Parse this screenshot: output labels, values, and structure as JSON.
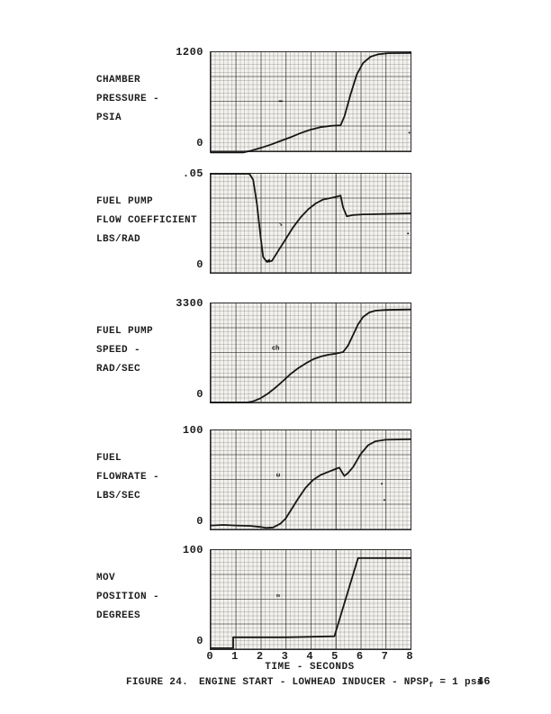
{
  "page": {
    "background": "#ffffff",
    "ink_color": "#1d1d1d",
    "paper_tint": "#f3f2ee"
  },
  "x_axis": {
    "label": "TIME - SECONDS",
    "ticks": [
      "0",
      "1",
      "2",
      "3",
      "4",
      "5",
      "6",
      "7",
      "8"
    ],
    "min": 0,
    "max": 8
  },
  "caption": {
    "figure_label": "FIGURE 24.",
    "title": "ENGINE START - LOWHEAD INDUCER - NPSP",
    "subscript": "f",
    "suffix": " = 1 psi",
    "page_number": "46"
  },
  "chart_data": [
    {
      "type": "line",
      "title": "Chamber Pressure",
      "label_lines": [
        "CHAMBER",
        "PRESSURE -",
        "PSIA"
      ],
      "ylabel": "CHAMBER PRESSURE - PSIA",
      "y_top_label": "1200",
      "y_bottom_label": "0",
      "ymax": 1200,
      "ylim": [
        0,
        1200
      ],
      "xlim": [
        0,
        8
      ],
      "points": [
        [
          0,
          -15
        ],
        [
          1.3,
          -15
        ],
        [
          1.6,
          5
        ],
        [
          2.0,
          40
        ],
        [
          2.4,
          80
        ],
        [
          2.8,
          125
        ],
        [
          3.2,
          170
        ],
        [
          3.6,
          220
        ],
        [
          4.0,
          262
        ],
        [
          4.4,
          292
        ],
        [
          4.8,
          308
        ],
        [
          5.2,
          315
        ],
        [
          5.35,
          420
        ],
        [
          5.6,
          690
        ],
        [
          5.85,
          930
        ],
        [
          6.1,
          1070
        ],
        [
          6.4,
          1145
        ],
        [
          6.7,
          1175
        ],
        [
          7.1,
          1188
        ],
        [
          8,
          1190
        ]
      ],
      "marks": [
        {
          "t": 2.8,
          "v": 600,
          "text": "▬"
        },
        {
          "t": 7.95,
          "v": 210,
          "text": "▪"
        }
      ]
    },
    {
      "type": "line",
      "title": "Fuel Pump Flow Coefficient",
      "label_lines": [
        "FUEL PUMP",
        "FLOW COEFFICIENT",
        "LBS/RAD"
      ],
      "ylabel": "FUEL PUMP FLOW COEFFICIENT LBS/RAD",
      "y_top_label": ".05",
      "y_bottom_label": "0",
      "ymax": 0.05,
      "ylim": [
        0,
        0.05
      ],
      "xlim": [
        0,
        8
      ],
      "points": [
        [
          0,
          0.05
        ],
        [
          1.55,
          0.05
        ],
        [
          1.7,
          0.047
        ],
        [
          1.85,
          0.035
        ],
        [
          2.0,
          0.018
        ],
        [
          2.1,
          0.008
        ],
        [
          2.25,
          0.0055
        ],
        [
          2.45,
          0.006
        ],
        [
          2.7,
          0.011
        ],
        [
          3.0,
          0.017
        ],
        [
          3.3,
          0.023
        ],
        [
          3.6,
          0.028
        ],
        [
          3.9,
          0.032
        ],
        [
          4.2,
          0.035
        ],
        [
          4.5,
          0.037
        ],
        [
          4.9,
          0.038
        ],
        [
          5.2,
          0.039
        ],
        [
          5.3,
          0.033
        ],
        [
          5.45,
          0.0285
        ],
        [
          5.7,
          0.0292
        ],
        [
          6.1,
          0.0295
        ],
        [
          8,
          0.03
        ]
      ],
      "marks": [
        {
          "t": 2.8,
          "v": 0.024,
          "text": "↘"
        },
        {
          "t": 2.3,
          "v": 0.0055,
          "text": "◄"
        },
        {
          "t": 7.9,
          "v": 0.019,
          "text": "▪"
        }
      ]
    },
    {
      "type": "line",
      "title": "Fuel Pump Speed",
      "label_lines": [
        "FUEL PUMP",
        "SPEED -",
        "RAD/SEC"
      ],
      "ylabel": "FUEL PUMP SPEED - RAD/SEC",
      "y_top_label": "3300",
      "y_bottom_label": "0",
      "ymax": 3300,
      "ylim": [
        0,
        3300
      ],
      "xlim": [
        0,
        8
      ],
      "points": [
        [
          0,
          0
        ],
        [
          1.45,
          0
        ],
        [
          1.7,
          40
        ],
        [
          2.0,
          140
        ],
        [
          2.3,
          300
        ],
        [
          2.6,
          500
        ],
        [
          2.9,
          720
        ],
        [
          3.2,
          950
        ],
        [
          3.5,
          1140
        ],
        [
          3.8,
          1300
        ],
        [
          4.1,
          1440
        ],
        [
          4.4,
          1530
        ],
        [
          4.7,
          1590
        ],
        [
          5.0,
          1625
        ],
        [
          5.3,
          1680
        ],
        [
          5.5,
          1900
        ],
        [
          5.7,
          2250
        ],
        [
          5.9,
          2600
        ],
        [
          6.1,
          2850
        ],
        [
          6.35,
          3000
        ],
        [
          6.6,
          3060
        ],
        [
          7.0,
          3085
        ],
        [
          8,
          3100
        ]
      ],
      "marks": [
        {
          "t": 2.6,
          "v": 1760,
          "text": "ch"
        }
      ]
    },
    {
      "type": "line",
      "title": "Fuel Flowrate",
      "label_lines": [
        "FUEL",
        "FLOWRATE -",
        "LBS/SEC"
      ],
      "ylabel": "FUEL FLOWRATE - LBS/SEC",
      "y_top_label": "100",
      "y_bottom_label": "0",
      "ymax": 100,
      "ylim": [
        0,
        100
      ],
      "xlim": [
        0,
        8
      ],
      "points": [
        [
          0,
          4
        ],
        [
          0.5,
          4.5
        ],
        [
          1.0,
          4
        ],
        [
          1.6,
          3.5
        ],
        [
          2.0,
          2.5
        ],
        [
          2.2,
          1.5
        ],
        [
          2.5,
          2
        ],
        [
          2.8,
          6
        ],
        [
          3.0,
          11
        ],
        [
          3.2,
          19
        ],
        [
          3.5,
          31
        ],
        [
          3.8,
          42
        ],
        [
          4.1,
          50
        ],
        [
          4.4,
          55
        ],
        [
          4.7,
          58
        ],
        [
          5.0,
          61
        ],
        [
          5.15,
          62.5
        ],
        [
          5.25,
          58
        ],
        [
          5.35,
          54
        ],
        [
          5.5,
          57
        ],
        [
          5.7,
          63
        ],
        [
          6.0,
          76
        ],
        [
          6.3,
          85
        ],
        [
          6.6,
          89
        ],
        [
          7.0,
          90.5
        ],
        [
          8,
          91
        ]
      ],
      "marks": [
        {
          "t": 2.7,
          "v": 54,
          "text": "ω"
        },
        {
          "t": 6.85,
          "v": 45,
          "text": "▪"
        },
        {
          "t": 6.95,
          "v": 28,
          "text": "▪"
        }
      ]
    },
    {
      "type": "line",
      "title": "MOV Position",
      "label_lines": [
        "MOV",
        "POSITION -",
        "DEGREES"
      ],
      "ylabel": "MOV POSITION - DEGREES",
      "y_top_label": "100",
      "y_bottom_label": "0",
      "ymax": 100,
      "ylim": [
        0,
        100
      ],
      "xlim": [
        0,
        8
      ],
      "points": [
        [
          0,
          1
        ],
        [
          0.9,
          1
        ],
        [
          0.9,
          12
        ],
        [
          3.0,
          12
        ],
        [
          4.95,
          13
        ],
        [
          5.9,
          92
        ],
        [
          8,
          92
        ]
      ],
      "marks": [
        {
          "t": 2.7,
          "v": 53,
          "text": "∞"
        }
      ]
    }
  ]
}
